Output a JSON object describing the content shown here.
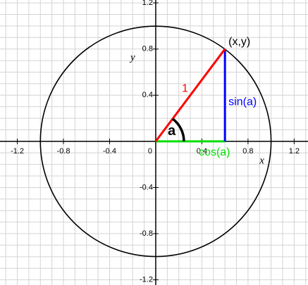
{
  "chart_data": {
    "type": "unit-circle",
    "xlim": [
      -1.35,
      1.32
    ],
    "ylim": [
      -1.245,
      1.225
    ],
    "xticks": [
      -1.2,
      -0.8,
      -0.4,
      0,
      0.4,
      0.8,
      1.2
    ],
    "yticks": [
      -1.2,
      -0.8,
      -0.4,
      0.4,
      0.8,
      1.2
    ],
    "grid": true,
    "grid_step": 0.1,
    "x_label": "x",
    "y_label": "y",
    "radius": 1,
    "point": {
      "x": 0.6,
      "y": 0.8,
      "label": "(x,y)"
    },
    "hypotenuse_color": "#ff0000",
    "sine": {
      "label": "sin(a)",
      "color": "#0000ff"
    },
    "cosine": {
      "label": "cos(a)",
      "color": "#00dd00"
    },
    "angle_label": "a"
  }
}
